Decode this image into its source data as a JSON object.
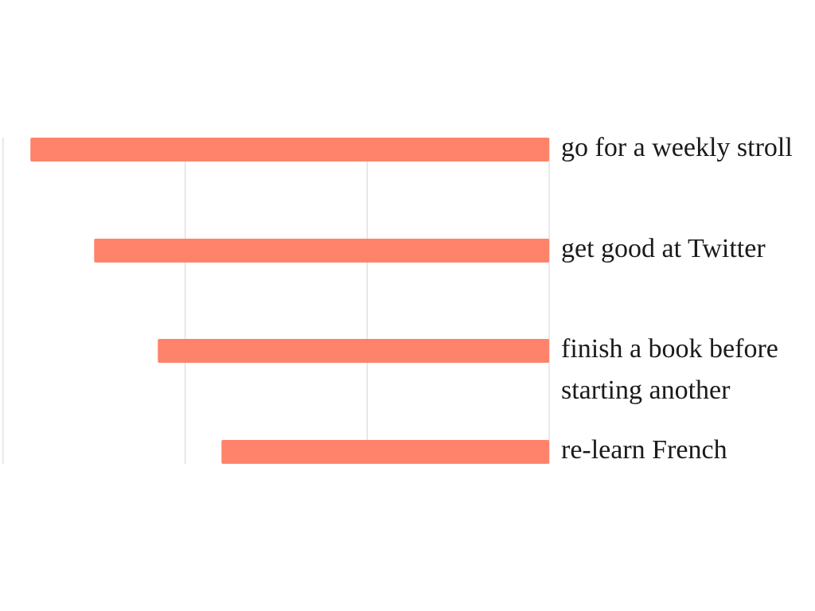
{
  "chart_data": {
    "type": "bar",
    "orientation": "horizontal",
    "direction": "right-to-left",
    "categories": [
      "go for a weekly stroll",
      "get good at Twitter",
      "finish a book before starting another",
      "re-learn French"
    ],
    "values": [
      2.85,
      2.5,
      2.15,
      1.8
    ],
    "xlim": [
      0,
      3
    ],
    "grid": true,
    "legend": "none",
    "colors": {
      "bar": "#ff826b",
      "grid": "#dddddd",
      "text": "#1a1a1a"
    }
  }
}
